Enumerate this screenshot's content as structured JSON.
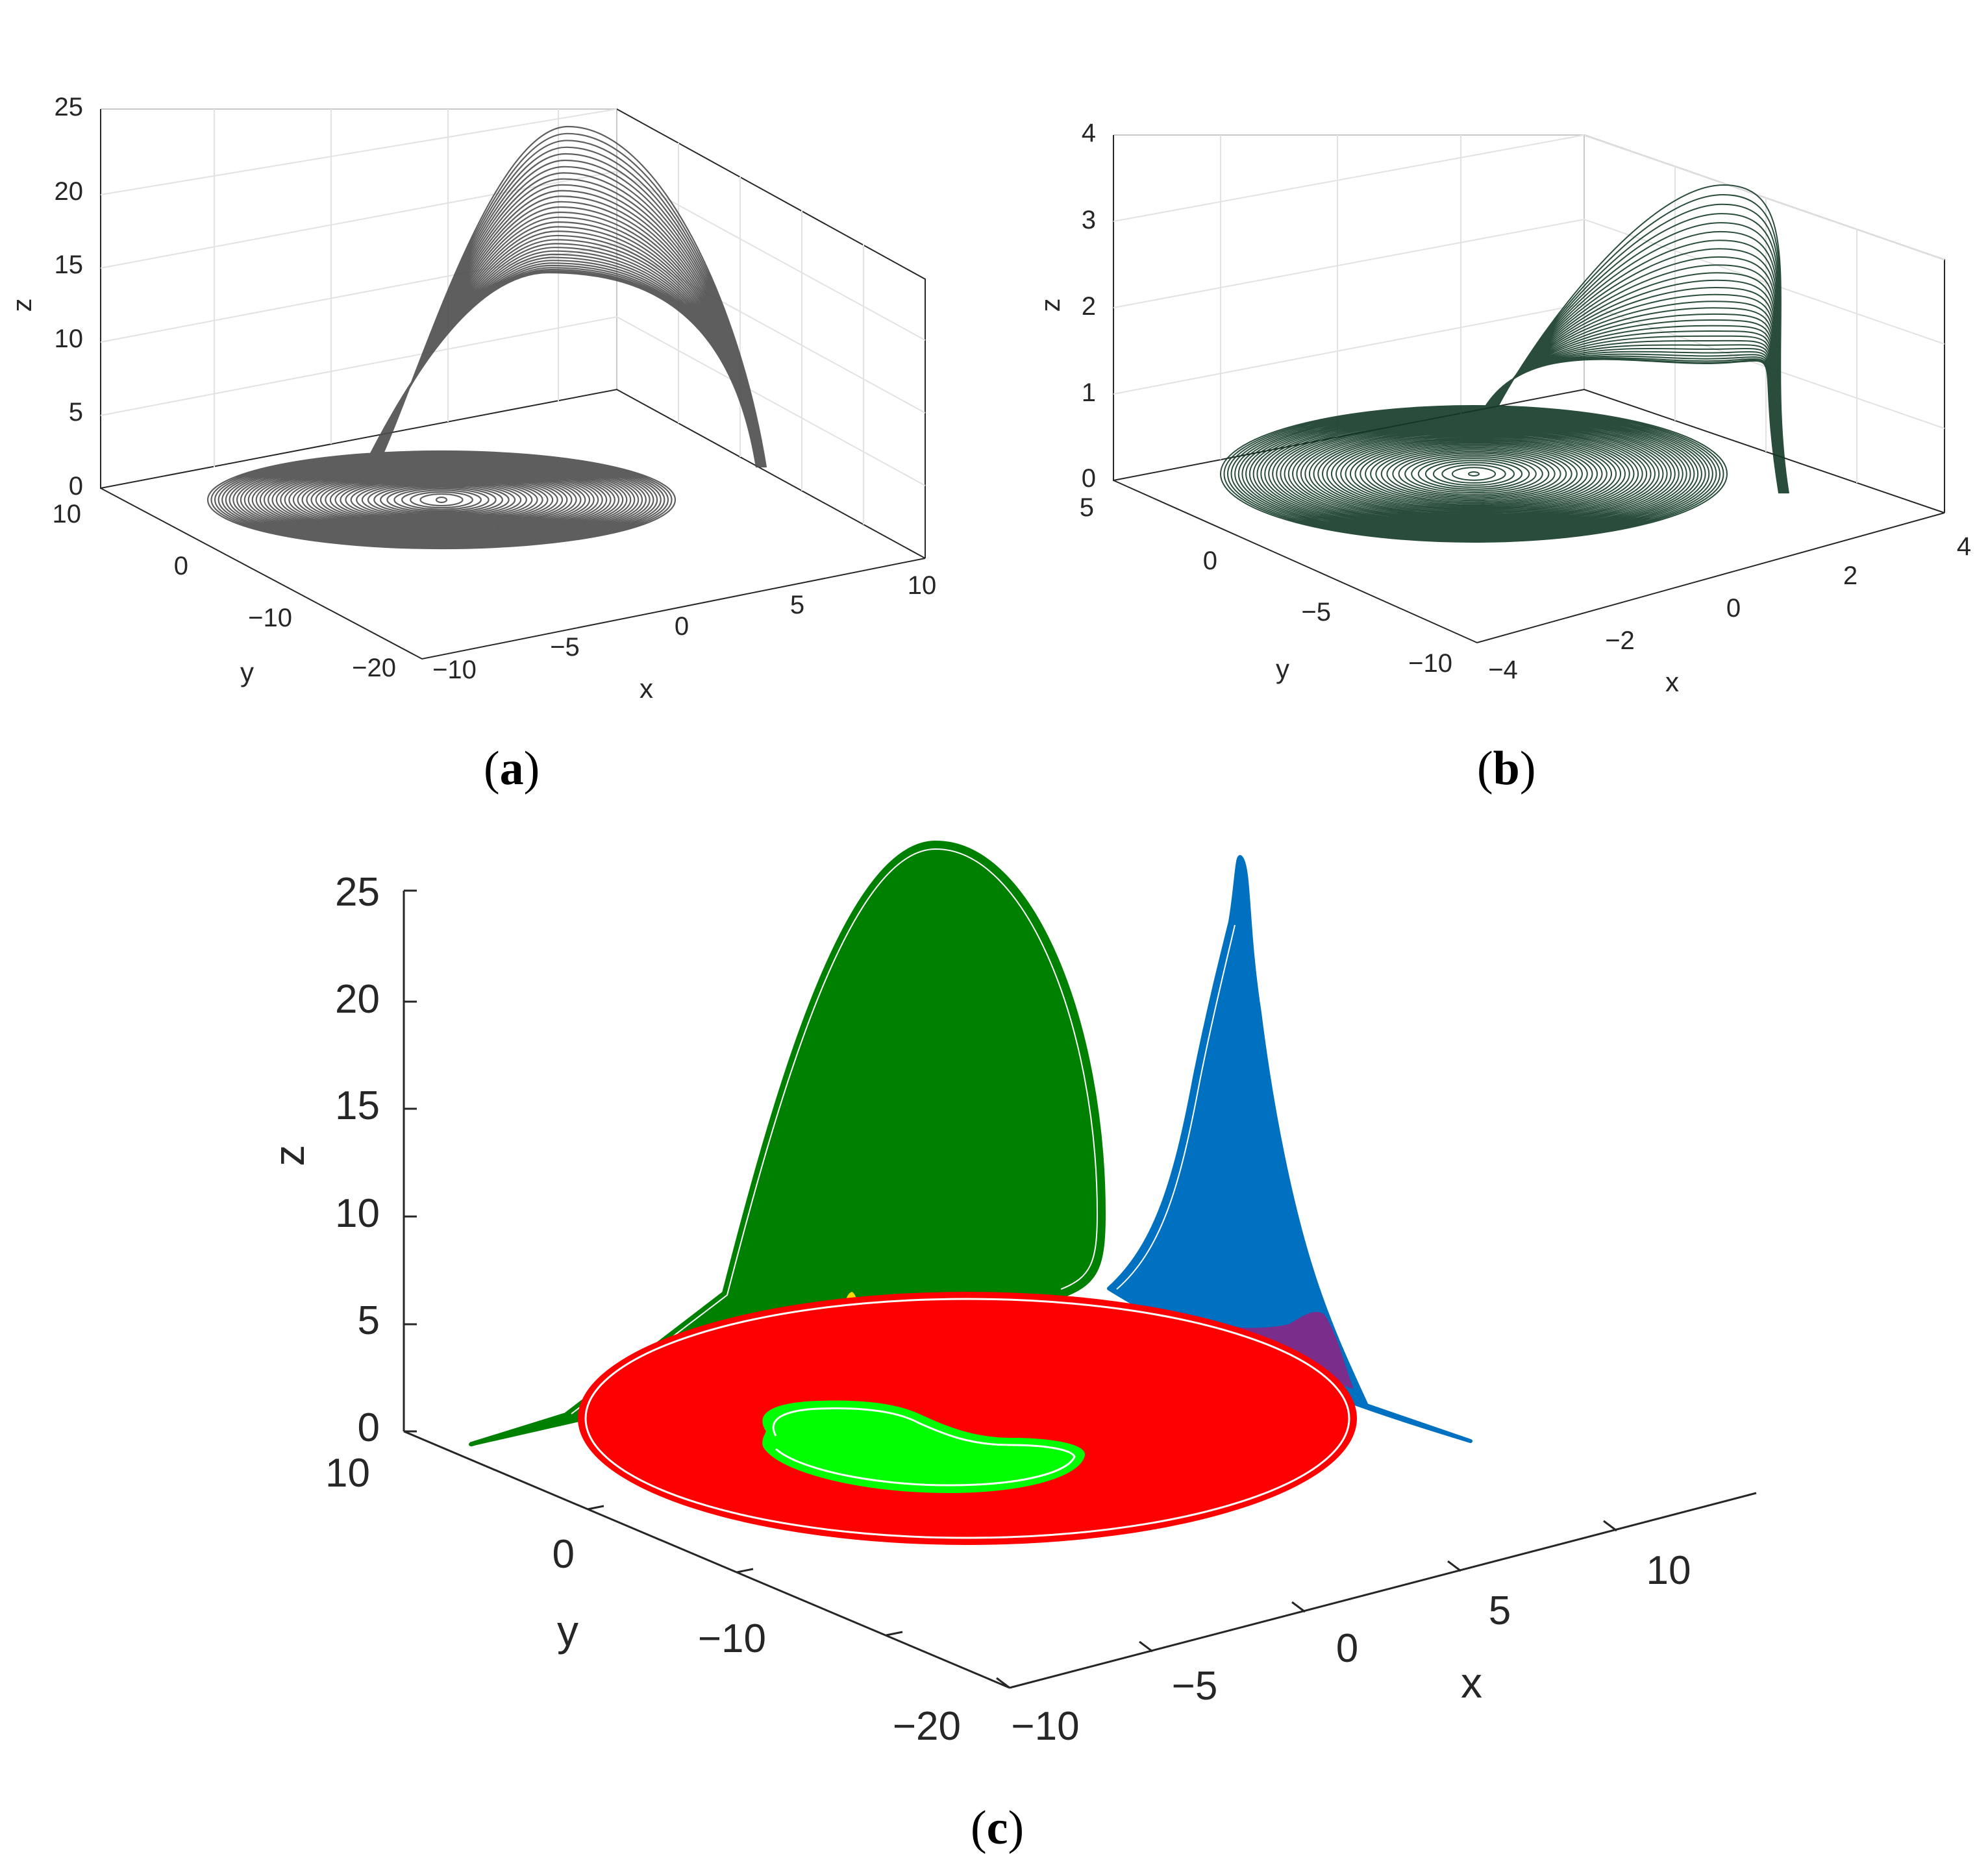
{
  "chart_data": [
    {
      "panel": "a",
      "type": "line",
      "panel_label": "a",
      "xlabel": "x",
      "ylabel": "y",
      "zlabel": "z",
      "xticks": [
        "−10",
        "−5",
        "0",
        "5",
        "10"
      ],
      "yticks": [
        "10",
        "0",
        "−10",
        "−20"
      ],
      "zticks": [
        "0",
        "5",
        "10",
        "15",
        "20",
        "25"
      ],
      "xlim": [
        -12,
        12
      ],
      "ylim": [
        -22,
        12
      ],
      "zlim": [
        0,
        25
      ],
      "grid": true,
      "color": "#4d4d4d"
    },
    {
      "panel": "b",
      "type": "line",
      "panel_label": "b",
      "xlabel": "x",
      "ylabel": "y",
      "zlabel": "z",
      "xticks": [
        "−4",
        "−2",
        "0",
        "2",
        "4"
      ],
      "yticks": [
        "5",
        "0",
        "−5",
        "−10"
      ],
      "zticks": [
        "0",
        "1",
        "2",
        "3",
        "4"
      ],
      "xlim": [
        -4,
        4
      ],
      "ylim": [
        -11,
        6
      ],
      "zlim": [
        0,
        4
      ],
      "grid": true,
      "color": "#123a25"
    },
    {
      "panel": "c",
      "type": "area",
      "panel_label": "c",
      "xlabel": "x",
      "ylabel": "y",
      "zlabel": "z",
      "xticks": [
        "−10",
        "−5",
        "0",
        "5",
        "10"
      ],
      "yticks": [
        "10",
        "0",
        "−10",
        "−20"
      ],
      "zticks": [
        "0",
        "5",
        "10",
        "15",
        "20",
        "25"
      ],
      "xlim": [
        -12,
        14
      ],
      "ylim": [
        -22,
        12
      ],
      "zlim": [
        0,
        25
      ],
      "grid": false,
      "regions": [
        {
          "color": "#008000"
        },
        {
          "color": "#ffd700"
        },
        {
          "color": "#0070c0"
        },
        {
          "color": "#7b2d8b"
        },
        {
          "color": "#ff0000"
        },
        {
          "color": "#00ff00"
        }
      ]
    }
  ]
}
